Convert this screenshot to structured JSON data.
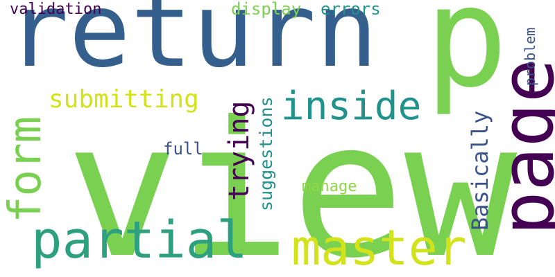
{
  "palette": {
    "background": "#ffffff",
    "dark_purple": "#440154",
    "indigo": "#3b528b",
    "steel_blue": "#355f8d",
    "teal": "#21918c",
    "green_teal": "#2ca07f",
    "light_green": "#7ad151",
    "lime": "#8fd744",
    "yellow_green": "#d2e21b"
  },
  "words": [
    {
      "id": "view",
      "text": "view",
      "color": "#7ad151",
      "orientation": "horizontal"
    },
    {
      "id": "return",
      "text": "return",
      "color": "#355f8d",
      "orientation": "horizontal"
    },
    {
      "id": "p",
      "text": "p",
      "color": "#7ad151",
      "orientation": "horizontal"
    },
    {
      "id": "page",
      "text": "page",
      "color": "#440154",
      "orientation": "vertical"
    },
    {
      "id": "master",
      "text": "master",
      "color": "#d2e21b",
      "orientation": "horizontal"
    },
    {
      "id": "partial",
      "text": "partial",
      "color": "#2ca07f",
      "orientation": "horizontal"
    },
    {
      "id": "form",
      "text": "form",
      "color": "#7ad151",
      "orientation": "vertical"
    },
    {
      "id": "inside",
      "text": "inside",
      "color": "#21918c",
      "orientation": "horizontal"
    },
    {
      "id": "submitting",
      "text": "submitting",
      "color": "#d2e21b",
      "orientation": "horizontal"
    },
    {
      "id": "trying",
      "text": "trying",
      "color": "#440154",
      "orientation": "vertical"
    },
    {
      "id": "basically",
      "text": "Basically",
      "color": "#3b528b",
      "orientation": "vertical"
    },
    {
      "id": "suggestions",
      "text": "suggestions",
      "color": "#21918c",
      "orientation": "vertical"
    },
    {
      "id": "validation",
      "text": "validation",
      "color": "#440154",
      "orientation": "horizontal"
    },
    {
      "id": "display",
      "text": "display",
      "color": "#7ad151",
      "orientation": "horizontal"
    },
    {
      "id": "errors",
      "text": "errors",
      "color": "#21918c",
      "orientation": "horizontal"
    },
    {
      "id": "problem",
      "text": "problem",
      "color": "#3b528b",
      "orientation": "vertical"
    },
    {
      "id": "full",
      "text": "full",
      "color": "#3b528b",
      "orientation": "horizontal"
    },
    {
      "id": "manage",
      "text": "manage",
      "color": "#8fd744",
      "orientation": "horizontal"
    }
  ]
}
